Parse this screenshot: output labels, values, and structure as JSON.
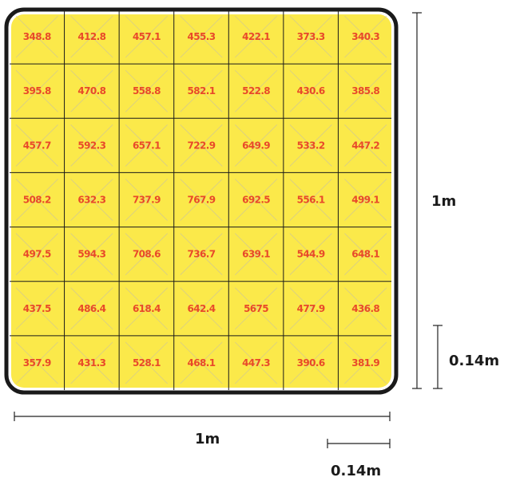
{
  "grid": {
    "rows": 7,
    "cols": 7,
    "values": [
      [
        "348.8",
        "412.8",
        "457.1",
        "455.3",
        "422.1",
        "373.3",
        "340.3"
      ],
      [
        "395.8",
        "470.8",
        "558.8",
        "582.1",
        "522.8",
        "430.6",
        "385.8"
      ],
      [
        "457.7",
        "592.3",
        "657.1",
        "722.9",
        "649.9",
        "533.2",
        "447.2"
      ],
      [
        "508.2",
        "632.3",
        "737.9",
        "767.9",
        "692.5",
        "556.1",
        "499.1"
      ],
      [
        "497.5",
        "594.3",
        "708.6",
        "736.7",
        "639.1",
        "544.9",
        "648.1"
      ],
      [
        "437.5",
        "486.4",
        "618.4",
        "642.4",
        "5675",
        "477.9",
        "436.8"
      ],
      [
        "357.9",
        "431.3",
        "528.1",
        "468.1",
        "447.3",
        "390.6",
        "381.9"
      ]
    ]
  },
  "dimensions": {
    "height_total": "1m",
    "height_cell": "0.14m",
    "width_total": "1m",
    "width_cell": "0.14m"
  },
  "colors": {
    "fill": "#fbe94a",
    "value_text": "#e8492a",
    "frame": "#1a1a1a"
  }
}
